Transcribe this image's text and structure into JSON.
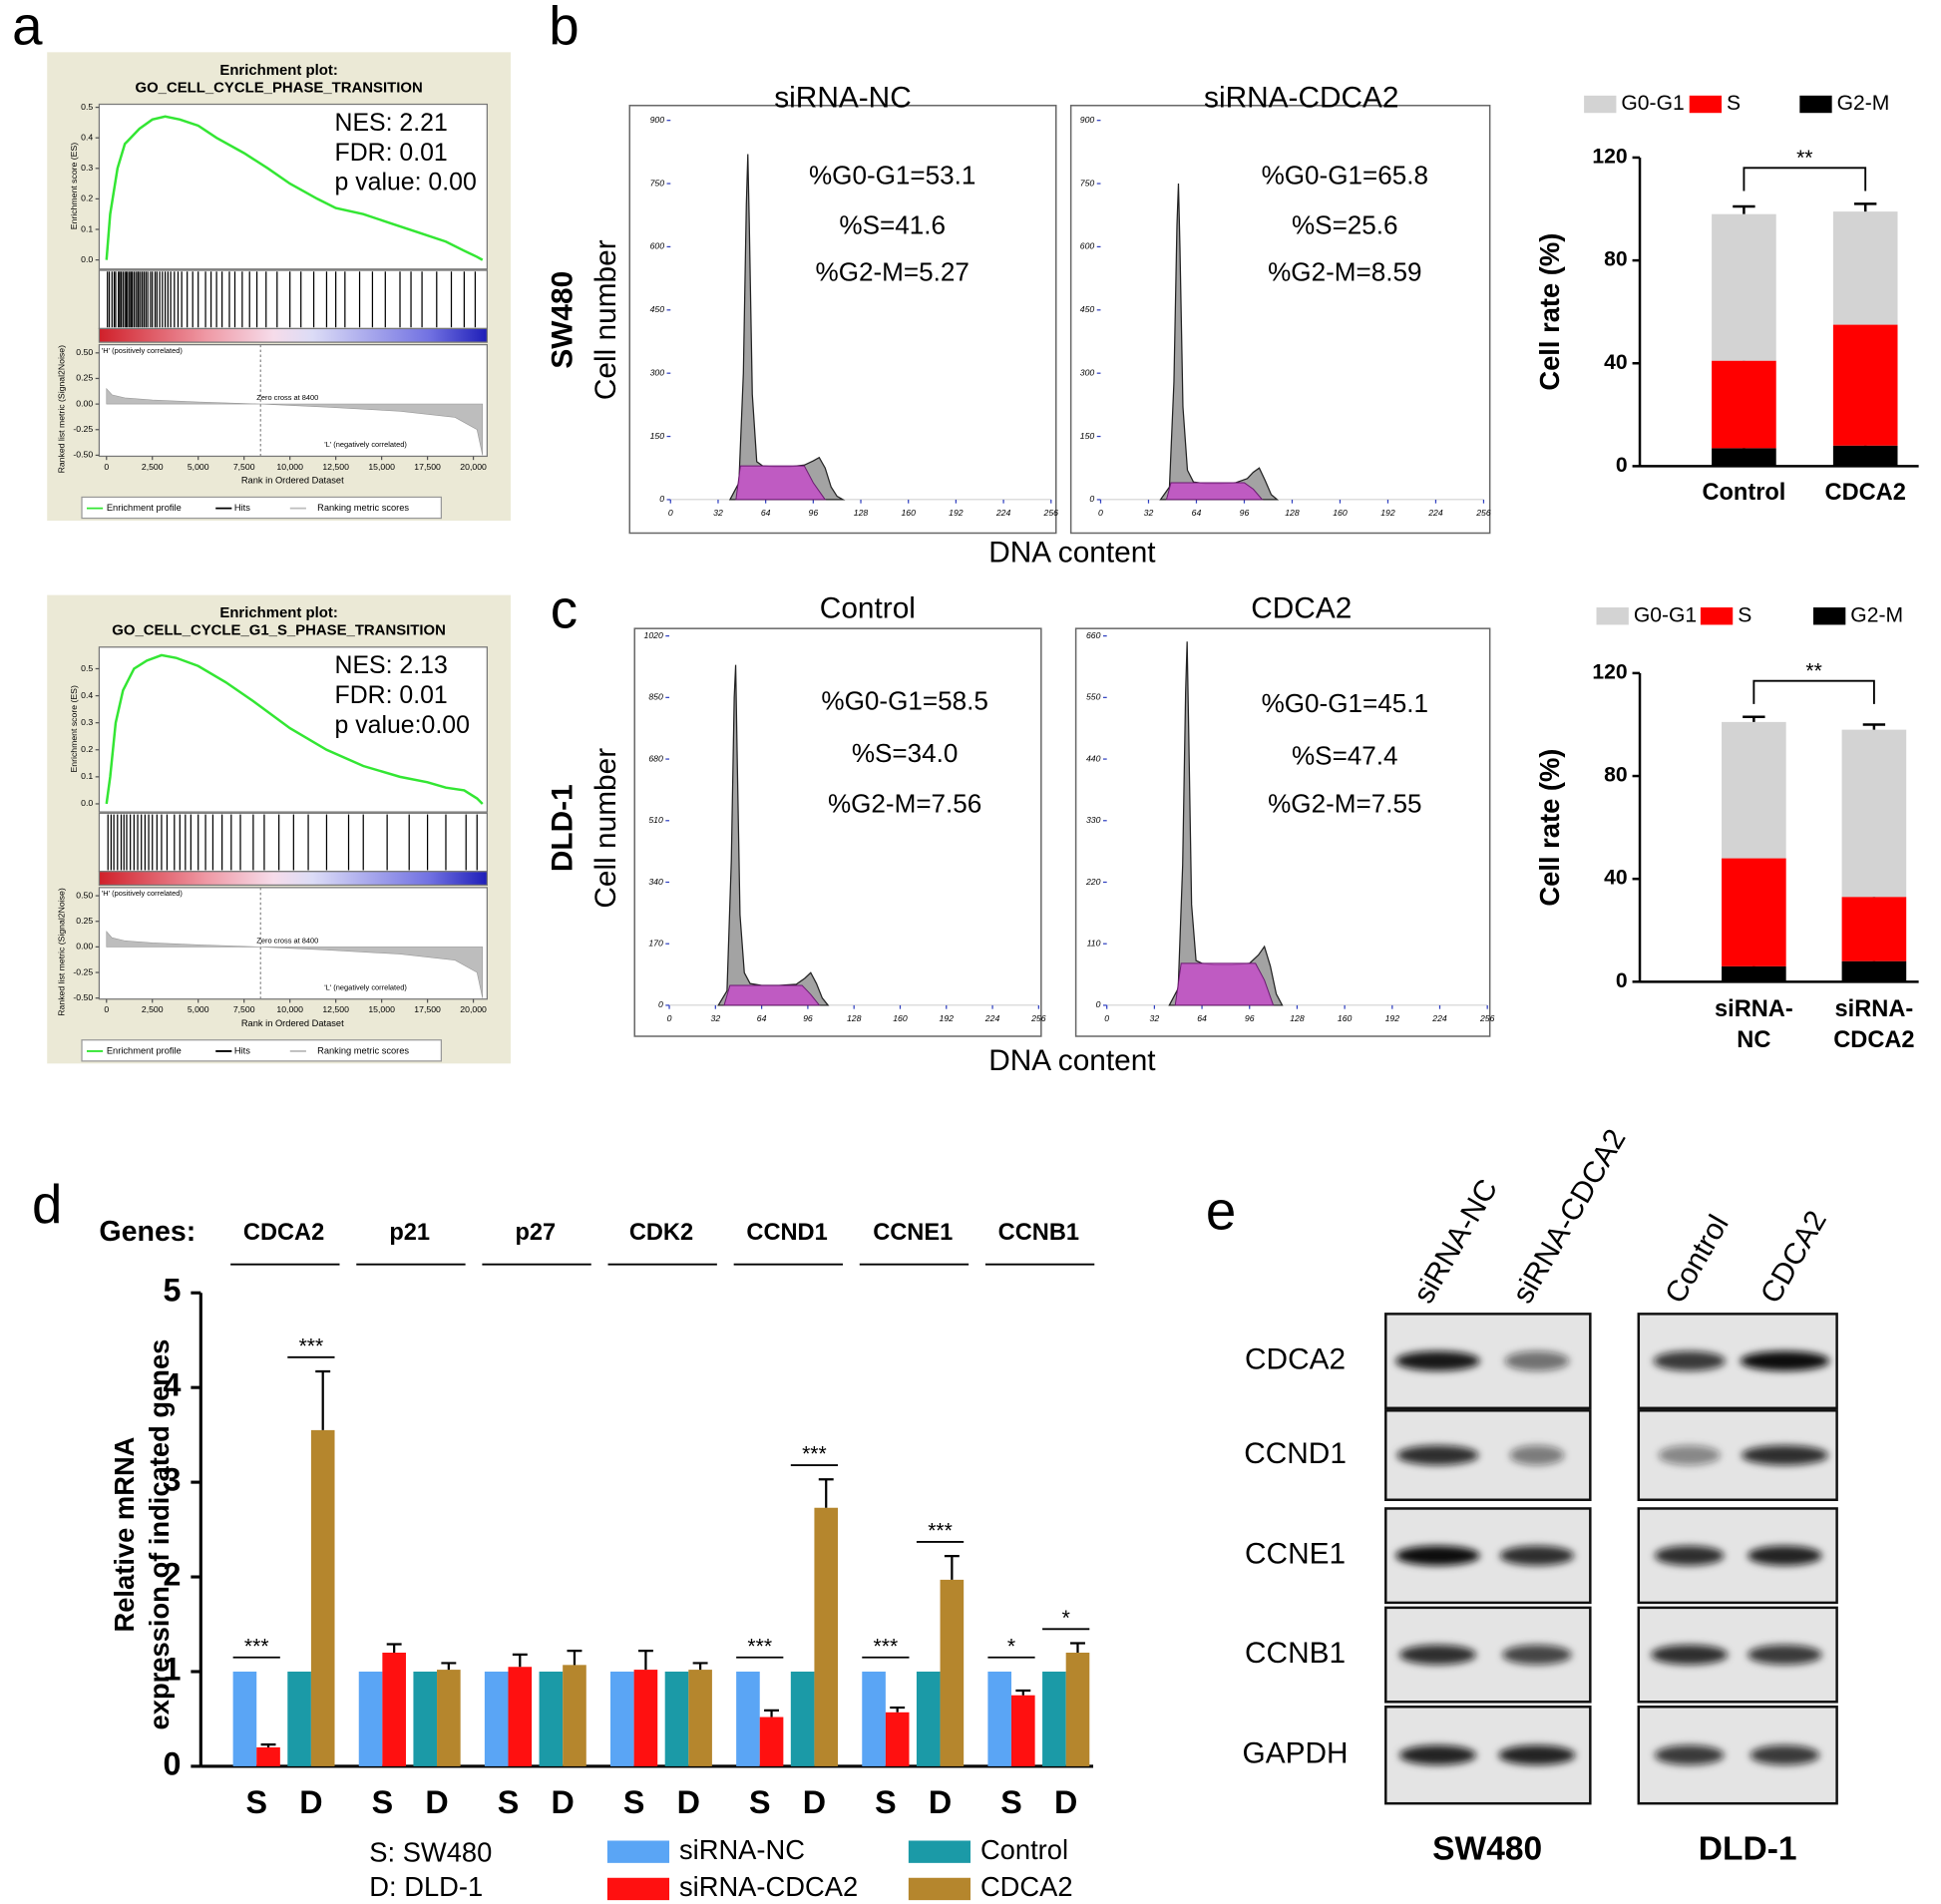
{
  "panel_labels": [
    "a",
    "b",
    "c",
    "d",
    "e"
  ],
  "flow_cytometry": {
    "rows": [
      {
        "label": "SW480",
        "ylabel": "Cell number",
        "xlabel": "DNA content"
      },
      {
        "label": "DLD-1",
        "ylabel": "Cell number",
        "xlabel": "DNA content"
      }
    ]
  },
  "chart_data": [
    {
      "type": "gsea",
      "title": "Enrichment plot:",
      "subtitle": "GO_CELL_CYCLE_PHASE_TRANSITION",
      "annotations": [
        "NES: 2.21",
        "FDR: 0.01",
        "p value: 0.00"
      ],
      "ylabel": "Enrichment score (ES)",
      "ylim": [
        -0.03,
        0.51
      ],
      "yticks": [
        {
          "value": 0,
          "label": "0.0"
        },
        0.1,
        0.2,
        0.3,
        0.4,
        0.5
      ],
      "xlabel": "Rank in Ordered Dataset",
      "xlim": [
        -400,
        20750
      ],
      "xticks": [
        0,
        {
          "value": 2500,
          "label": "2,500"
        },
        {
          "value": 5000,
          "label": "5,000"
        },
        {
          "value": 7500,
          "label": "7,500"
        },
        {
          "value": 10000,
          "label": "10,000"
        },
        {
          "value": 12500,
          "label": "12,500"
        },
        {
          "value": 15000,
          "label": "15,000"
        },
        {
          "value": 17500,
          "label": "17,500"
        },
        {
          "value": 20000,
          "label": "20,000"
        }
      ],
      "x": [
        0,
        200,
        600,
        1000,
        1800,
        2500,
        3200,
        4000,
        5000,
        6000,
        7500,
        8800,
        10000,
        11500,
        12500,
        14000,
        15500,
        17000,
        18500,
        19500,
        20200,
        20500
      ],
      "values": [
        0,
        0.15,
        0.3,
        0.38,
        0.43,
        0.46,
        0.47,
        0.46,
        0.44,
        0.4,
        0.35,
        0.3,
        0.25,
        0.2,
        0.17,
        0.15,
        0.12,
        0.09,
        0.06,
        0.03,
        0.01,
        0
      ],
      "color": "#33e633",
      "hits": [
        50,
        150,
        300,
        420,
        500,
        650,
        720,
        800,
        900,
        1000,
        1080,
        1150,
        1250,
        1330,
        1400,
        1500,
        1600,
        1700,
        1750,
        1850,
        1950,
        2050,
        2150,
        2250,
        2400,
        2500,
        2650,
        2750,
        2900,
        3050,
        3200,
        3350,
        3500,
        3700,
        3900,
        4100,
        4400,
        4700,
        5000,
        5400,
        5700,
        6000,
        6300,
        6700,
        7000,
        7400,
        7800,
        8200,
        8700,
        9300,
        10000,
        10600,
        11300,
        12000,
        12500,
        13000,
        13800,
        14500,
        15200,
        16000,
        16600,
        17200,
        18000,
        18800,
        19500,
        20100
      ],
      "hits_color": "#000000",
      "metric": {
        "ylabel": "Ranked list metric (Signal2Noise)",
        "ylim": [
          -0.51,
          0.58
        ],
        "yticks": [
          {
            "value": 0.5,
            "label": "0.50"
          },
          {
            "value": 0.25,
            "label": "0.25"
          },
          {
            "value": 0,
            "label": "0.00"
          },
          {
            "value": -0.25,
            "label": "-0.25"
          },
          {
            "value": -0.5,
            "label": "-0.50"
          }
        ],
        "x": [
          0,
          300,
          1000,
          2500,
          5000,
          8400,
          12000,
          16000,
          19000,
          20200,
          20500
        ],
        "values": [
          0.15,
          0.09,
          0.06,
          0.04,
          0.02,
          0,
          -0.03,
          -0.07,
          -0.13,
          -0.25,
          -0.5
        ],
        "color": "#bdbdbd"
      },
      "zero_cross": 8400,
      "labels": {
        "positive": "'H' (positively correlated)",
        "zero_cross": "Zero cross at 8400",
        "negative": "'L' (negatively correlated)"
      },
      "legend": [
        "Enrichment profile",
        "Hits",
        "Ranking metric scores"
      ]
    },
    {
      "type": "gsea",
      "title": "Enrichment plot:",
      "subtitle": "GO_CELL_CYCLE_G1_S_PHASE_TRANSITION",
      "annotations": [
        "NES: 2.13",
        "FDR: 0.01",
        "p value:0.00"
      ],
      "ylabel": "Enrichment score (ES)",
      "ylim": [
        -0.03,
        0.58
      ],
      "yticks": [
        {
          "value": 0,
          "label": "0.0"
        },
        0.1,
        0.2,
        0.3,
        0.4,
        0.5
      ],
      "xlabel": "Rank in Ordered Dataset",
      "xlim": [
        -400,
        20750
      ],
      "xticks": [
        0,
        {
          "value": 2500,
          "label": "2,500"
        },
        {
          "value": 5000,
          "label": "5,000"
        },
        {
          "value": 7500,
          "label": "7,500"
        },
        {
          "value": 10000,
          "label": "10,000"
        },
        {
          "value": 12500,
          "label": "12,500"
        },
        {
          "value": 15000,
          "label": "15,000"
        },
        {
          "value": 17500,
          "label": "17,500"
        },
        {
          "value": 20000,
          "label": "20,000"
        }
      ],
      "x": [
        0,
        200,
        500,
        900,
        1500,
        2200,
        3000,
        3800,
        5000,
        6500,
        8000,
        10000,
        12000,
        14000,
        16000,
        17500,
        18500,
        19500,
        20200,
        20500
      ],
      "values": [
        0,
        0.1,
        0.3,
        0.42,
        0.5,
        0.53,
        0.55,
        0.54,
        0.51,
        0.45,
        0.38,
        0.28,
        0.2,
        0.14,
        0.1,
        0.08,
        0.06,
        0.05,
        0.02,
        0
      ],
      "color": "#33e633",
      "hits": [
        80,
        250,
        400,
        600,
        800,
        950,
        1100,
        1300,
        1500,
        1700,
        1900,
        2100,
        2300,
        2500,
        2750,
        3000,
        3300,
        3700,
        4000,
        4300,
        4600,
        5000,
        5400,
        5800,
        6300,
        6800,
        7300,
        8000,
        8600,
        9400,
        10200,
        11000,
        12000,
        13200,
        14000,
        15300,
        16500,
        17500,
        18500,
        19600,
        20200
      ],
      "hits_color": "#000000",
      "metric": {
        "ylabel": "Ranked list metric (Signal2Noise)",
        "ylim": [
          -0.51,
          0.58
        ],
        "yticks": [
          {
            "value": 0.5,
            "label": "0.50"
          },
          {
            "value": 0.25,
            "label": "0.25"
          },
          {
            "value": 0,
            "label": "0.00"
          },
          {
            "value": -0.25,
            "label": "-0.25"
          },
          {
            "value": -0.5,
            "label": "-0.50"
          }
        ],
        "x": [
          0,
          300,
          1000,
          2500,
          5000,
          8400,
          12000,
          16000,
          19000,
          20200,
          20500
        ],
        "values": [
          0.15,
          0.09,
          0.06,
          0.04,
          0.02,
          0,
          -0.03,
          -0.07,
          -0.13,
          -0.25,
          -0.5
        ],
        "color": "#bdbdbd"
      },
      "zero_cross": 8400,
      "labels": {
        "positive": "'H' (positively correlated)",
        "zero_cross": "Zero cross at 8400",
        "negative": "'L' (negatively correlated)"
      },
      "legend": [
        "Enrichment profile",
        "Hits",
        "Ranking metric scores"
      ]
    },
    {
      "type": "flow",
      "title": "siRNA-NC",
      "annotations": [
        "%G0-G1=53.1",
        "%S=41.6",
        "%G2-M=5.27"
      ],
      "xlim": [
        0,
        256
      ],
      "xticks": [
        0,
        32,
        64,
        96,
        128,
        160,
        192,
        224,
        256
      ],
      "ylim": [
        0,
        900
      ],
      "yticks": [
        0,
        150,
        300,
        450,
        600,
        750,
        900
      ],
      "x": [
        40,
        46,
        49,
        51,
        52,
        53,
        55,
        58,
        62,
        70,
        80,
        90,
        96,
        100,
        104,
        108,
        112,
        116
      ],
      "values": [
        0,
        40,
        300,
        700,
        820,
        650,
        250,
        90,
        80,
        78,
        78,
        82,
        92,
        100,
        75,
        30,
        8,
        0
      ],
      "color": "#a3a3a3",
      "s_phase": {
        "x": [
          44,
          47,
          90,
          96,
          104
        ],
        "values": [
          0,
          80,
          80,
          40,
          0
        ],
        "color": "#c44fc8"
      }
    },
    {
      "type": "flow",
      "title": "siRNA-CDCA2",
      "annotations": [
        "%G0-G1=65.8",
        "%S=25.6",
        "%G2-M=8.59"
      ],
      "xlim": [
        0,
        256
      ],
      "xticks": [
        0,
        32,
        64,
        96,
        128,
        160,
        192,
        224,
        256
      ],
      "ylim": [
        0,
        900
      ],
      "yticks": [
        0,
        150,
        300,
        450,
        600,
        750,
        900
      ],
      "x": [
        40,
        46,
        49,
        51,
        52,
        53,
        55,
        58,
        62,
        70,
        80,
        90,
        98,
        102,
        106,
        110,
        114,
        118
      ],
      "values": [
        0,
        30,
        280,
        650,
        750,
        600,
        220,
        70,
        42,
        38,
        38,
        40,
        50,
        65,
        75,
        45,
        12,
        0
      ],
      "color": "#a3a3a3",
      "s_phase": {
        "x": [
          44,
          47,
          96,
          102,
          108
        ],
        "values": [
          0,
          40,
          40,
          25,
          0
        ],
        "color": "#c44fc8"
      }
    },
    {
      "type": "flow",
      "title": "Control",
      "annotations": [
        "%G0-G1=58.5",
        "%S=34.0",
        "%G2-M=7.56"
      ],
      "xlim": [
        0,
        256
      ],
      "xticks": [
        0,
        32,
        64,
        96,
        128,
        160,
        192,
        224,
        256
      ],
      "ylim": [
        0,
        1020
      ],
      "yticks": [
        0,
        170,
        340,
        510,
        680,
        850,
        1020
      ],
      "x": [
        34,
        40,
        43,
        45,
        46,
        47,
        49,
        52,
        56,
        64,
        76,
        88,
        94,
        98,
        102,
        106,
        110
      ],
      "values": [
        0,
        40,
        400,
        850,
        940,
        700,
        250,
        90,
        60,
        55,
        55,
        58,
        75,
        90,
        60,
        20,
        0
      ],
      "color": "#a3a3a3",
      "s_phase": {
        "x": [
          38,
          42,
          92,
          98,
          104
        ],
        "values": [
          0,
          55,
          55,
          30,
          0
        ],
        "color": "#c44fc8"
      }
    },
    {
      "type": "flow",
      "title": "CDCA2",
      "annotations": [
        "%G0-G1=45.1",
        "%S=47.4",
        "%G2-M=7.55"
      ],
      "xlim": [
        0,
        256
      ],
      "xticks": [
        0,
        32,
        64,
        96,
        128,
        160,
        192,
        224,
        256
      ],
      "ylim": [
        0,
        660
      ],
      "yticks": [
        0,
        110,
        220,
        330,
        440,
        550,
        660
      ],
      "x": [
        42,
        48,
        51,
        53,
        54,
        55,
        57,
        60,
        64,
        72,
        84,
        96,
        102,
        106,
        110,
        114,
        118
      ],
      "values": [
        0,
        30,
        250,
        560,
        650,
        500,
        180,
        80,
        75,
        72,
        72,
        75,
        90,
        105,
        70,
        20,
        0
      ],
      "color": "#a3a3a3",
      "s_phase": {
        "x": [
          46,
          50,
          100,
          106,
          112
        ],
        "values": [
          0,
          75,
          75,
          45,
          0
        ],
        "color": "#c44fc8"
      }
    },
    {
      "type": "stacked-bar",
      "ylabel": "Cell rate (%)",
      "categories": [
        "Control",
        "CDCA2"
      ],
      "series": [
        {
          "name": "G0-G1",
          "color": "#d3d3d3",
          "values": [
            57,
            44
          ],
          "errors": [
            3,
            3
          ]
        },
        {
          "name": "S",
          "color": "#ff0000",
          "values": [
            34,
            47
          ],
          "errors": [
            3,
            3
          ]
        },
        {
          "name": "G2-M",
          "color": "#000000",
          "values": [
            7,
            8
          ],
          "errors": [
            1.5,
            1.5
          ]
        }
      ],
      "ylim": [
        0,
        120
      ],
      "yticks": [
        0,
        40,
        80,
        120
      ],
      "significance": "**"
    },
    {
      "type": "stacked-bar",
      "ylabel": "Cell rate (%)",
      "categories": [
        "siRNA-NC",
        "siRNA-CDCA2"
      ],
      "series": [
        {
          "name": "G0-G1",
          "color": "#d3d3d3",
          "values": [
            53,
            65
          ],
          "errors": [
            2,
            2
          ]
        },
        {
          "name": "S",
          "color": "#ff0000",
          "values": [
            42,
            25
          ],
          "errors": [
            3,
            3
          ]
        },
        {
          "name": "G2-M",
          "color": "#000000",
          "values": [
            6,
            8
          ],
          "errors": [
            2,
            2
          ]
        }
      ],
      "ylim": [
        0,
        120
      ],
      "yticks": [
        0,
        40,
        80,
        120
      ],
      "significance": "**"
    },
    {
      "type": "grouped-bar",
      "xlabel": "Genes:",
      "categories": [
        "CDCA2",
        "p21",
        "p27",
        "CDK2",
        "CCND1",
        "CCNE1",
        "CCNB1"
      ],
      "group_labels": [
        "S",
        "D"
      ],
      "notes": [
        "S: SW480",
        "D: DLD-1"
      ],
      "ylabel": [
        "Relative mRNA",
        "expression of indicated genes"
      ],
      "ylim": [
        0,
        5
      ],
      "yticks": [
        0,
        1,
        2,
        3,
        4,
        5
      ],
      "series": [
        {
          "name": "siRNA-NC",
          "color": "#5aa5f5",
          "values": [
            1,
            1,
            1,
            1,
            1,
            1,
            1
          ]
        },
        {
          "name": "siRNA-CDCA2",
          "color": "#ff1010",
          "values": [
            0.2,
            1.2,
            1.05,
            1.02,
            0.52,
            0.57,
            0.75
          ],
          "errors": [
            0.03,
            0.09,
            0.13,
            0.2,
            0.07,
            0.05,
            0.05
          ]
        },
        {
          "name": "Control",
          "color": "#1b9aa7",
          "values": [
            1,
            1,
            1,
            1,
            1,
            1,
            1
          ]
        },
        {
          "name": "CDCA2",
          "color": "#b5862d",
          "values": [
            3.55,
            1.02,
            1.07,
            1.02,
            2.73,
            1.97,
            1.2
          ],
          "errors": [
            0.62,
            0.07,
            0.15,
            0.07,
            0.3,
            0.25,
            0.1
          ]
        }
      ],
      "significance": [
        [
          "***",
          null,
          null,
          null,
          "***",
          "***",
          "*"
        ],
        [
          "***",
          null,
          null,
          null,
          "***",
          "***",
          "*"
        ]
      ]
    }
  ],
  "western_blot": {
    "lanes": [
      [
        "siRNA-NC",
        "siRNA-CDCA2"
      ],
      [
        "Control",
        "CDCA2"
      ]
    ],
    "cell_lines": [
      "SW480",
      "DLD-1"
    ],
    "proteins": [
      "CDCA2",
      "CCND1",
      "CCNE1",
      "CCNB1",
      "GAPDH"
    ]
  }
}
